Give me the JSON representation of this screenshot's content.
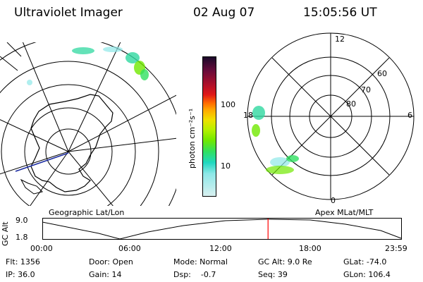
{
  "header": {
    "instrument": "Ultraviolet Imager",
    "date": "02 Aug 07",
    "time": "15:05:56 UT"
  },
  "left_panel": {
    "label": "Geographic Lat/Lon"
  },
  "right_panel": {
    "label": "Apex MLat/MLT",
    "mlt_labels": [
      "12",
      "18",
      "6",
      "0"
    ],
    "mlat_labels": [
      "60",
      "70",
      "80"
    ]
  },
  "colorbar": {
    "unit_label": "photon cm⁻²s⁻¹",
    "tick_labels": [
      "100",
      "10"
    ],
    "colors": [
      "#1a0a2a",
      "#6a0b3a",
      "#b0102a",
      "#e01818",
      "#ff6a00",
      "#ffa800",
      "#f0e000",
      "#b8f000",
      "#70e800",
      "#30e060",
      "#20d8c0",
      "#8ee8e8",
      "#d8f0f0"
    ]
  },
  "altitude_plot": {
    "ylabel": "GC Alt",
    "yticks": [
      "9.0",
      "1.8"
    ],
    "xticks": [
      "00:00",
      "06:00",
      "12:00",
      "18:00",
      "23:59"
    ],
    "current_time_fraction": 0.6291,
    "marker_color": "#ff0000"
  },
  "info": {
    "flt": "Flt: 1356",
    "ip": "IP: 36.0",
    "door": "Door: Open",
    "gain": "Gain: 14",
    "mode": "Mode: Normal",
    "dsp": "Dsp:    -0.7",
    "gcalt": "GC Alt: 9.0 Re",
    "seq": "Seq: 39",
    "glat": "GLat: -74.0",
    "glon": "GLon: 106.4"
  }
}
